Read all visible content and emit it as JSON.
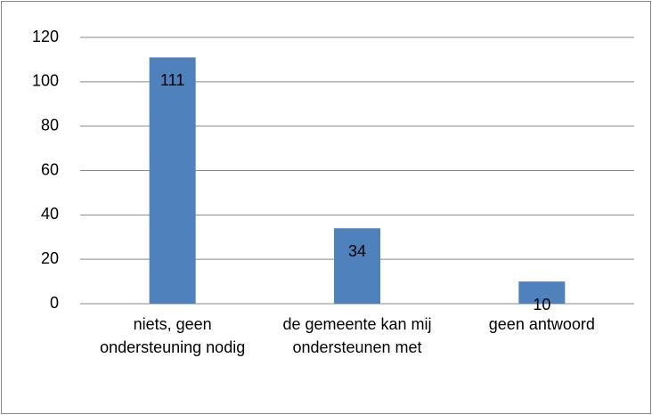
{
  "chart_data": {
    "type": "bar",
    "categories": [
      "niets, geen ondersteuning nodig",
      "de gemeente kan mij ondersteunen met",
      "geen antwoord"
    ],
    "values": [
      111,
      34,
      10
    ],
    "color": "#4f81bd",
    "ylim": [
      0,
      120
    ],
    "yticks": [
      0,
      20,
      40,
      60,
      80,
      100,
      120
    ],
    "grid": true
  }
}
